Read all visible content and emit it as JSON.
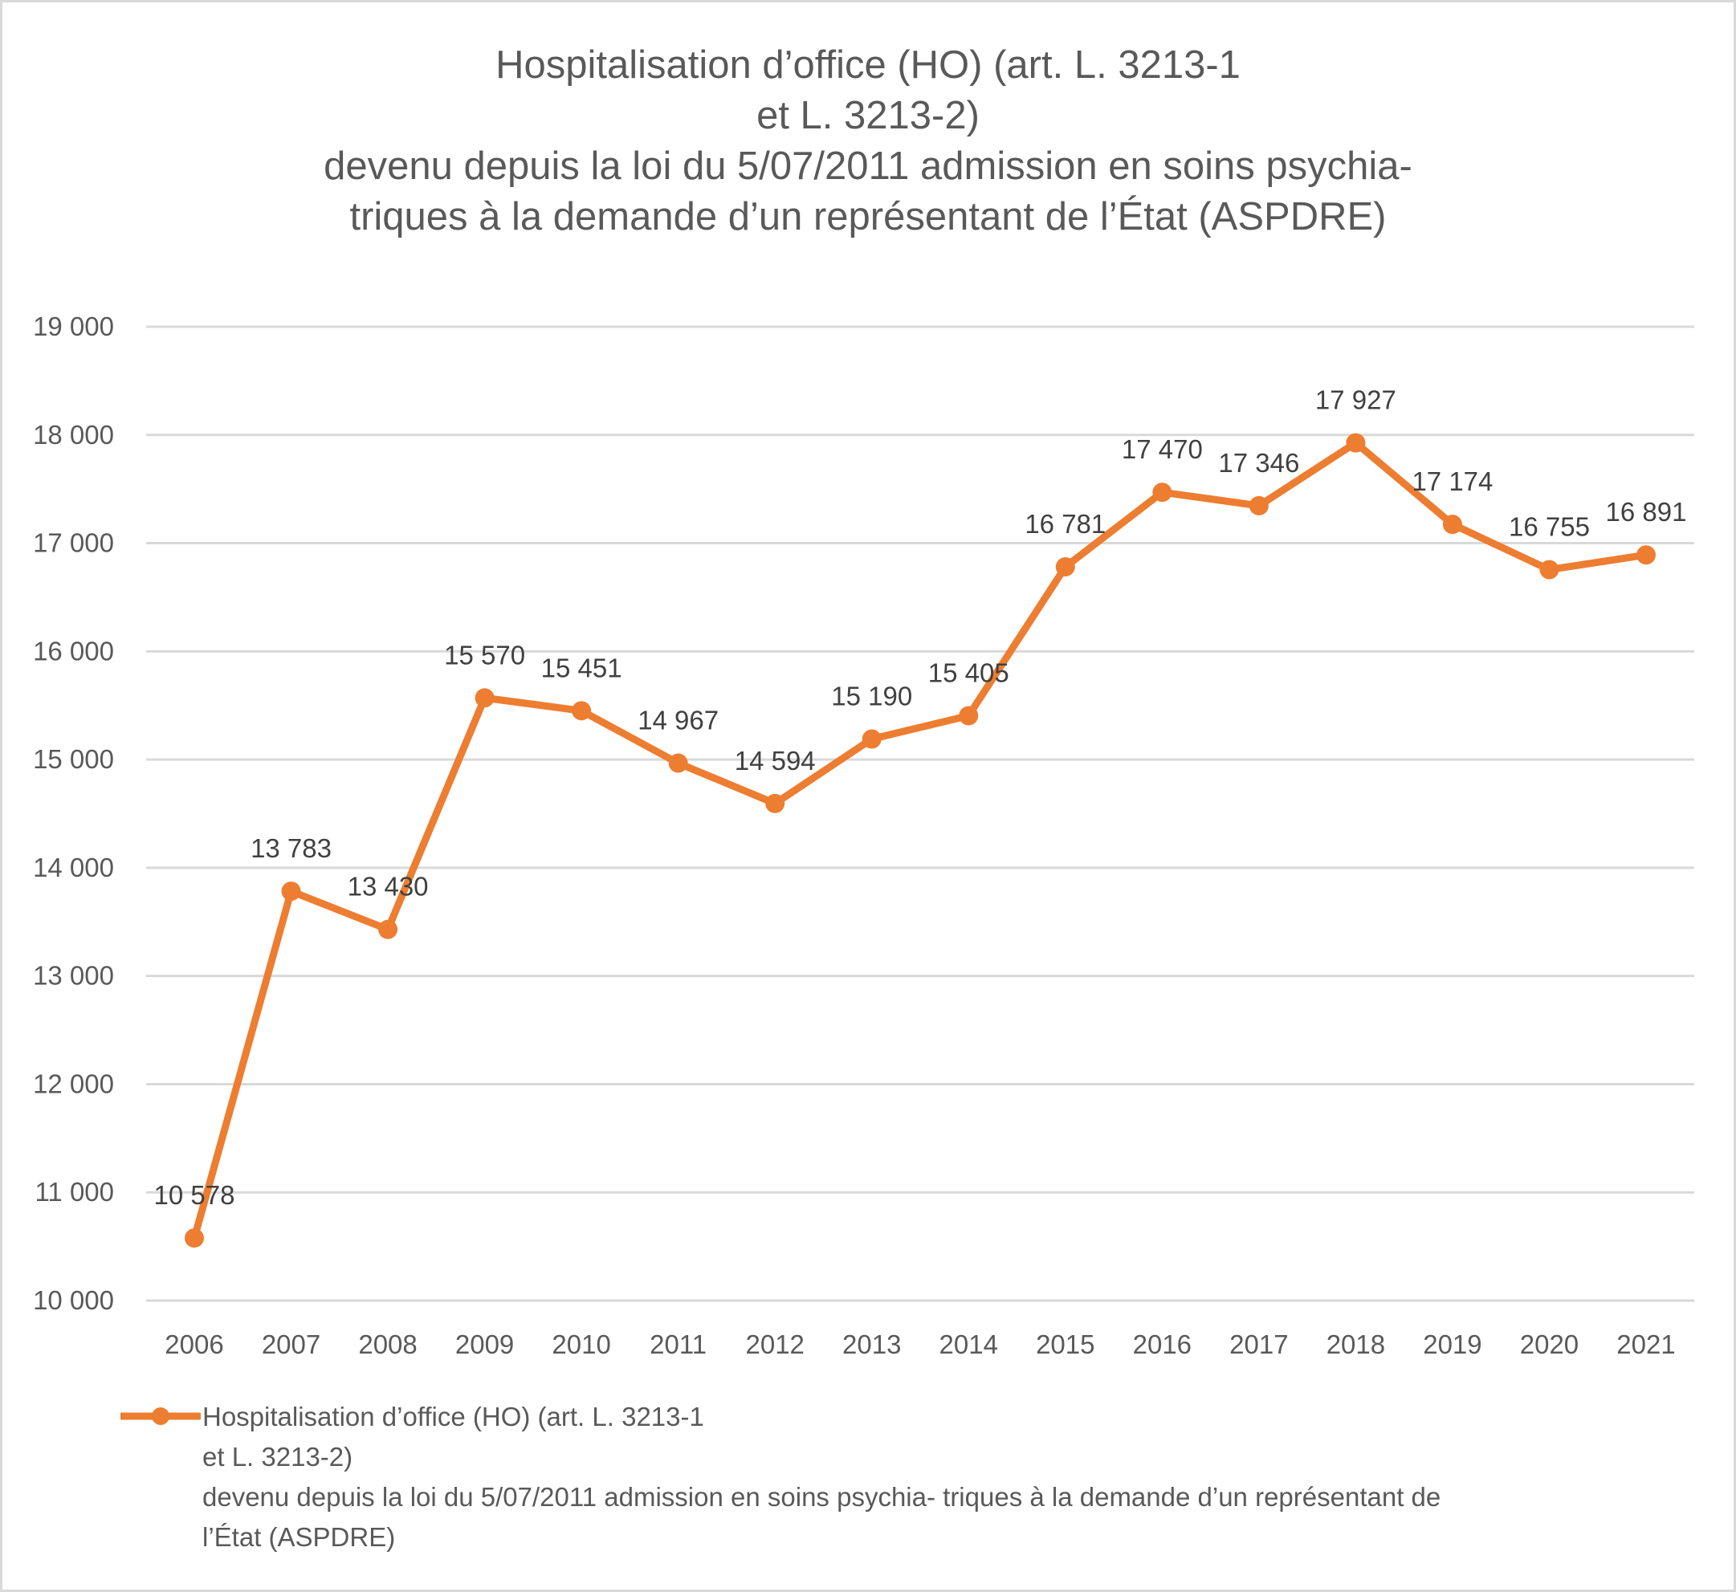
{
  "chart_data": {
    "type": "line",
    "title_lines": [
      "Hospitalisation d’office (HO) (art. L. 3213-1",
      "et L. 3213-2)",
      "devenu depuis la loi du 5/07/2011 admission en soins psychia-",
      "triques à la demande d’un représentant de l’État (ASPDRE)"
    ],
    "xlabel": "",
    "ylabel": "",
    "categories": [
      "2006",
      "2007",
      "2008",
      "2009",
      "2010",
      "2011",
      "2012",
      "2013",
      "2014",
      "2015",
      "2016",
      "2017",
      "2018",
      "2019",
      "2020",
      "2021"
    ],
    "series": [
      {
        "name": "Hospitalisation d’office (HO) (art. L. 3213-1 et L. 3213-2) devenu depuis la loi du 5/07/2011 admission en soins psychia- triques à la demande d’un représentant de l’État (ASPDRE)",
        "color": "#ed7d31",
        "values": [
          10578,
          13783,
          13430,
          15570,
          15451,
          14967,
          14594,
          15190,
          15405,
          16781,
          17470,
          17346,
          17927,
          17174,
          16755,
          16891
        ],
        "data_labels": [
          "10 578",
          "13 783",
          "13 430",
          "15 570",
          "15 451",
          "14 967",
          "14 594",
          "15 190",
          "15 405",
          "16 781",
          "17 470",
          "17 346",
          "17 927",
          "17 174",
          "16 755",
          "16 891"
        ]
      }
    ],
    "ylim": [
      10000,
      19000
    ],
    "yticks": [
      10000,
      11000,
      12000,
      13000,
      14000,
      15000,
      16000,
      17000,
      18000,
      19000
    ],
    "ytick_labels": [
      "10 000",
      "11 000",
      "12 000",
      "13 000",
      "14 000",
      "15 000",
      "16 000",
      "17 000",
      "18 000",
      "19 000"
    ],
    "grid": true,
    "legend_position": "bottom-left",
    "legend_lines": [
      "Hospitalisation d’office (HO) (art. L. 3213-1",
      "et L. 3213-2)",
      "devenu depuis la loi du 5/07/2011 admission en soins psychia- triques à la demande d’un représentant de",
      "l’État (ASPDRE)"
    ]
  }
}
